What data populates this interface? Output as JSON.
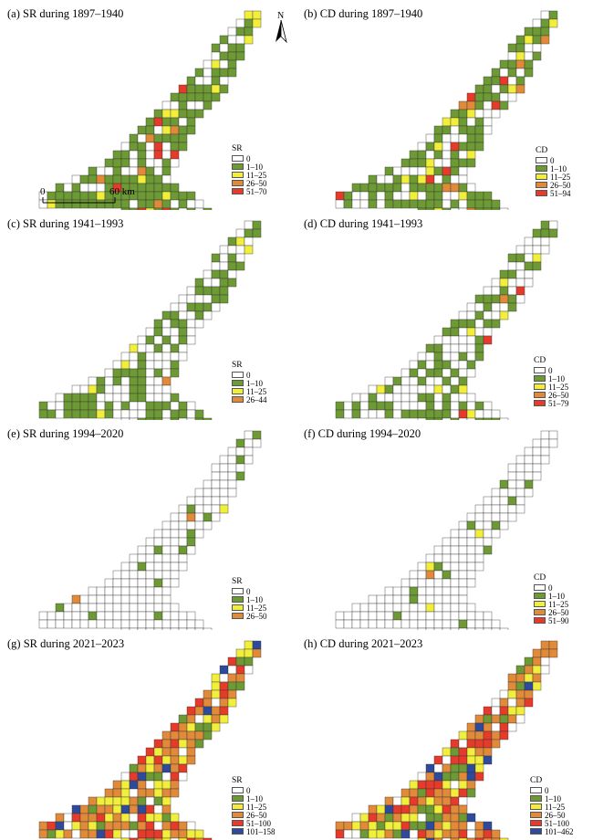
{
  "colors": {
    "c0": "#ffffff",
    "c1": "#6e9a35",
    "c2": "#f2ef3c",
    "c3": "#e08a3a",
    "c4": "#e63a2a",
    "c5": "#2d4a9c",
    "grid": "#333333"
  },
  "north_label": "N",
  "scale_bar": {
    "start": "0",
    "end": "60 km"
  },
  "panels": [
    {
      "id": "a",
      "title": "(a) SR during 1897–1940",
      "legend_title": "SR",
      "legend": [
        "0",
        "1–10",
        "11–25",
        "26–50",
        "51–70"
      ]
    },
    {
      "id": "b",
      "title": "(b) CD during 1897–1940",
      "legend_title": "CD",
      "legend": [
        "0",
        "1–10",
        "11–25",
        "26–50",
        "51–94"
      ]
    },
    {
      "id": "c",
      "title": "(c) SR during 1941–1993",
      "legend_title": "SR",
      "legend": [
        "0",
        "1–10",
        "11–25",
        "26–44"
      ]
    },
    {
      "id": "d",
      "title": "(d) CD during 1941–1993",
      "legend_title": "CD",
      "legend": [
        "0",
        "1–10",
        "11–25",
        "26–50",
        "51–79"
      ]
    },
    {
      "id": "e",
      "title": "(e) SR during 1994–2020",
      "legend_title": "SR",
      "legend": [
        "0",
        "1–10",
        "11–25",
        "26–50"
      ]
    },
    {
      "id": "f",
      "title": "(f) CD during 1994–2020",
      "legend_title": "CD",
      "legend": [
        "0",
        "1–10",
        "11–25",
        "26–50",
        "51–90"
      ]
    },
    {
      "id": "g",
      "title": "(g) SR during 2021–2023",
      "legend_title": "SR",
      "legend": [
        "0",
        "1–10",
        "11–25",
        "26–50",
        "51–100",
        "101–158"
      ]
    },
    {
      "id": "h",
      "title": "(h) CD during 2021–2023",
      "legend_title": "CD",
      "legend": [
        "0",
        "1–10",
        "11–25",
        "26–50",
        "51–100",
        "101–462"
      ]
    }
  ]
}
